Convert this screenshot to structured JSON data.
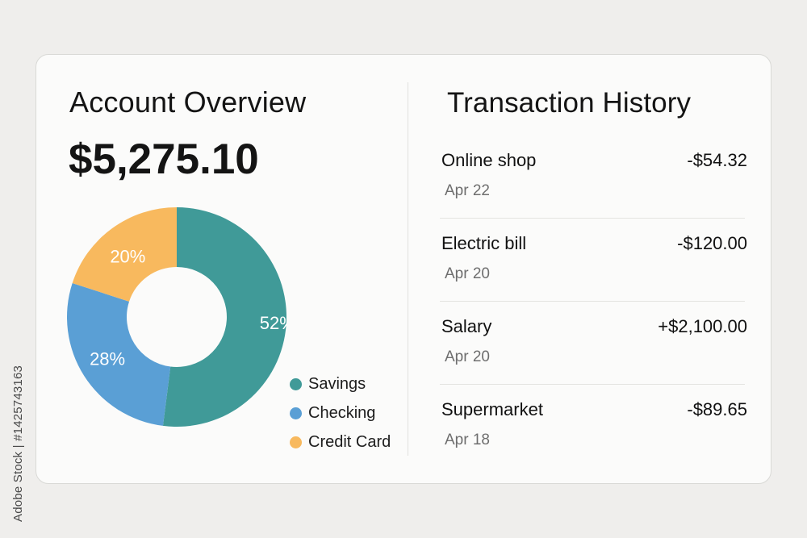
{
  "overview": {
    "title": "Account Overview",
    "balance": "$5,275.10"
  },
  "chart_data": {
    "type": "pie",
    "categories": [
      "Savings",
      "Checking",
      "Credit Card"
    ],
    "values": [
      52,
      28,
      20
    ],
    "labels": [
      "52%",
      "28%",
      "20%"
    ],
    "colors": [
      "#409a98",
      "#5a9fd5",
      "#f8b95e"
    ],
    "legend": "right"
  },
  "history": {
    "title": "Transaction History",
    "items": [
      {
        "name": "Online shop",
        "amount": "-$54.32",
        "date": "Apr 22"
      },
      {
        "name": "Electric bill",
        "amount": "-$120.00",
        "date": "Apr 20"
      },
      {
        "name": "Salary",
        "amount": "+$2,100.00",
        "date": "Apr 20"
      },
      {
        "name": "Supermarket",
        "amount": "-$89.65",
        "date": "Apr 18"
      }
    ]
  },
  "watermark": "Adobe Stock | #1425743163"
}
